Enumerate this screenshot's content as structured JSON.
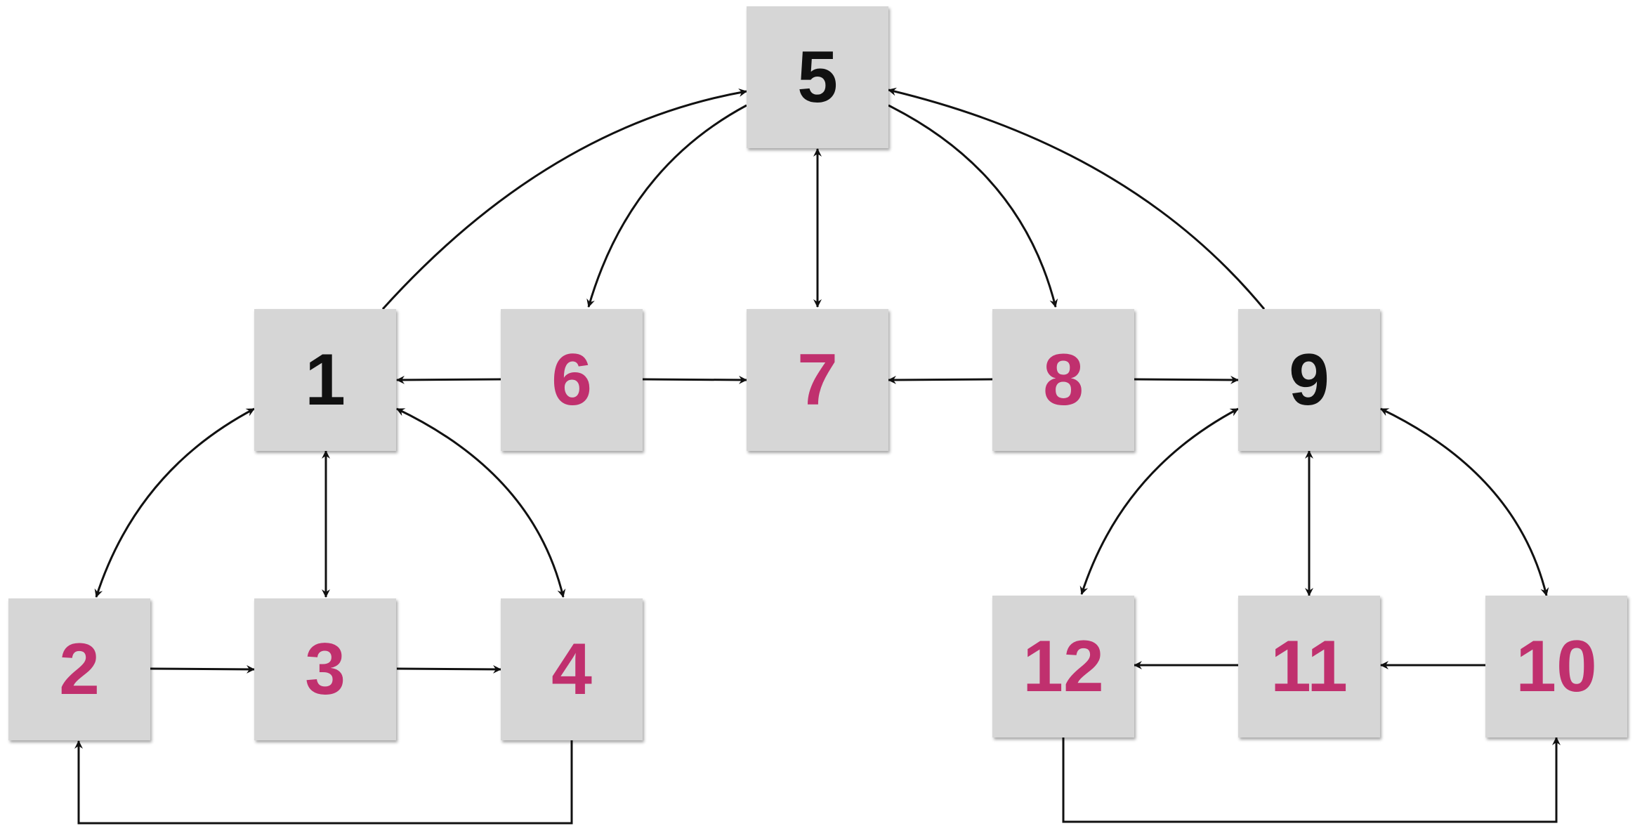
{
  "colors": {
    "hub": "#111111",
    "member": "#c0306e",
    "node_fill": "#d6d6d6",
    "edge": "#111111"
  },
  "nodes": {
    "n1": {
      "label": "1",
      "role": "hub"
    },
    "n2": {
      "label": "2",
      "role": "member"
    },
    "n3": {
      "label": "3",
      "role": "member"
    },
    "n4": {
      "label": "4",
      "role": "member"
    },
    "n5": {
      "label": "5",
      "role": "hub"
    },
    "n6": {
      "label": "6",
      "role": "member"
    },
    "n7": {
      "label": "7",
      "role": "member"
    },
    "n8": {
      "label": "8",
      "role": "member"
    },
    "n9": {
      "label": "9",
      "role": "hub"
    },
    "n10": {
      "label": "10",
      "role": "member"
    },
    "n11": {
      "label": "11",
      "role": "member"
    },
    "n12": {
      "label": "12",
      "role": "member"
    }
  },
  "edges": [
    {
      "from": "1",
      "to": "5",
      "direction": "forward"
    },
    {
      "from": "5",
      "to": "6",
      "direction": "bidirectional"
    },
    {
      "from": "5",
      "to": "7",
      "direction": "bidirectional"
    },
    {
      "from": "5",
      "to": "8",
      "direction": "forward"
    },
    {
      "from": "9",
      "to": "5",
      "direction": "forward"
    },
    {
      "from": "6",
      "to": "1",
      "direction": "forward"
    },
    {
      "from": "6",
      "to": "7",
      "direction": "forward"
    },
    {
      "from": "8",
      "to": "7",
      "direction": "forward"
    },
    {
      "from": "8",
      "to": "9",
      "direction": "forward"
    },
    {
      "from": "1",
      "to": "2",
      "direction": "bidirectional"
    },
    {
      "from": "1",
      "to": "3",
      "direction": "bidirectional"
    },
    {
      "from": "1",
      "to": "4",
      "direction": "bidirectional"
    },
    {
      "from": "2",
      "to": "3",
      "direction": "forward"
    },
    {
      "from": "3",
      "to": "4",
      "direction": "forward"
    },
    {
      "from": "4",
      "to": "2",
      "direction": "forward"
    },
    {
      "from": "9",
      "to": "12",
      "direction": "bidirectional"
    },
    {
      "from": "9",
      "to": "11",
      "direction": "bidirectional"
    },
    {
      "from": "9",
      "to": "10",
      "direction": "bidirectional"
    },
    {
      "from": "10",
      "to": "11",
      "direction": "forward"
    },
    {
      "from": "11",
      "to": "12",
      "direction": "forward"
    },
    {
      "from": "12",
      "to": "10",
      "direction": "forward"
    }
  ]
}
